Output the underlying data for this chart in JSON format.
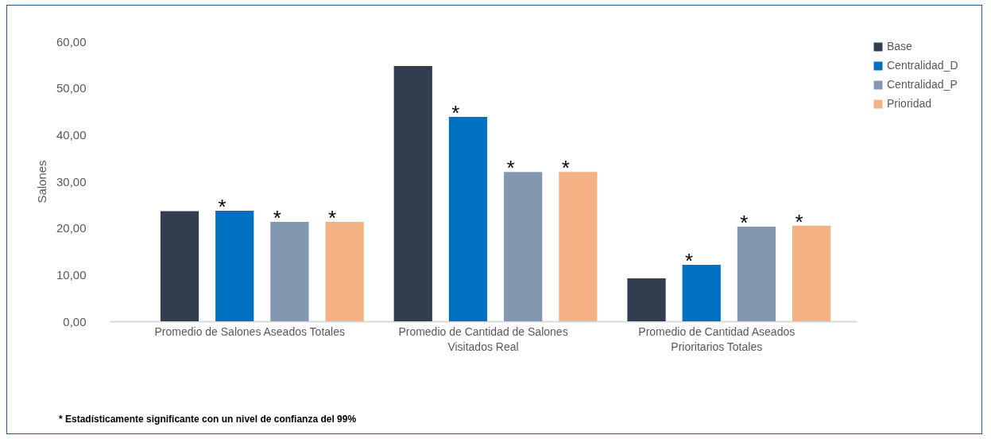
{
  "chart_data": {
    "type": "bar",
    "ylabel": "Salones",
    "categories": [
      "Promedio de Salones Aseados Totales",
      "Promedio de Cantidad de Salones Visitados Real",
      "Promedio de Cantidad Aseados Prioritarios Totales"
    ],
    "series": [
      {
        "name": "Base",
        "color": "#323e4f",
        "values": [
          23.6,
          54.7,
          9.2
        ]
      },
      {
        "name": "Centralidad_D",
        "color": "#0070c0",
        "values": [
          23.7,
          43.8,
          12.1
        ],
        "value_labels": [
          "*",
          "*",
          "*"
        ]
      },
      {
        "name": "Centralidad_P",
        "color": "#8497b0",
        "values": [
          21.3,
          32.0,
          20.3
        ],
        "value_labels": [
          "*",
          "*",
          "*"
        ]
      },
      {
        "name": "Prioridad",
        "color": "#f4b183",
        "values": [
          21.3,
          32.0,
          20.5
        ],
        "value_labels": [
          "*",
          "*",
          "*"
        ]
      }
    ],
    "ylim": [
      0,
      60
    ],
    "yticks": [
      {
        "value": 0,
        "label": "0,00"
      },
      {
        "value": 10,
        "label": "10,00"
      },
      {
        "value": 20,
        "label": "20,00"
      },
      {
        "value": 30,
        "label": "30,00"
      },
      {
        "value": 40,
        "label": "40,00"
      },
      {
        "value": 50,
        "label": "50,00"
      },
      {
        "value": 60,
        "label": "60,00"
      }
    ],
    "grid": false,
    "legend": "right",
    "annotations": [
      "* Estadísticamente significante con un nivel de confianza del 99%"
    ]
  }
}
